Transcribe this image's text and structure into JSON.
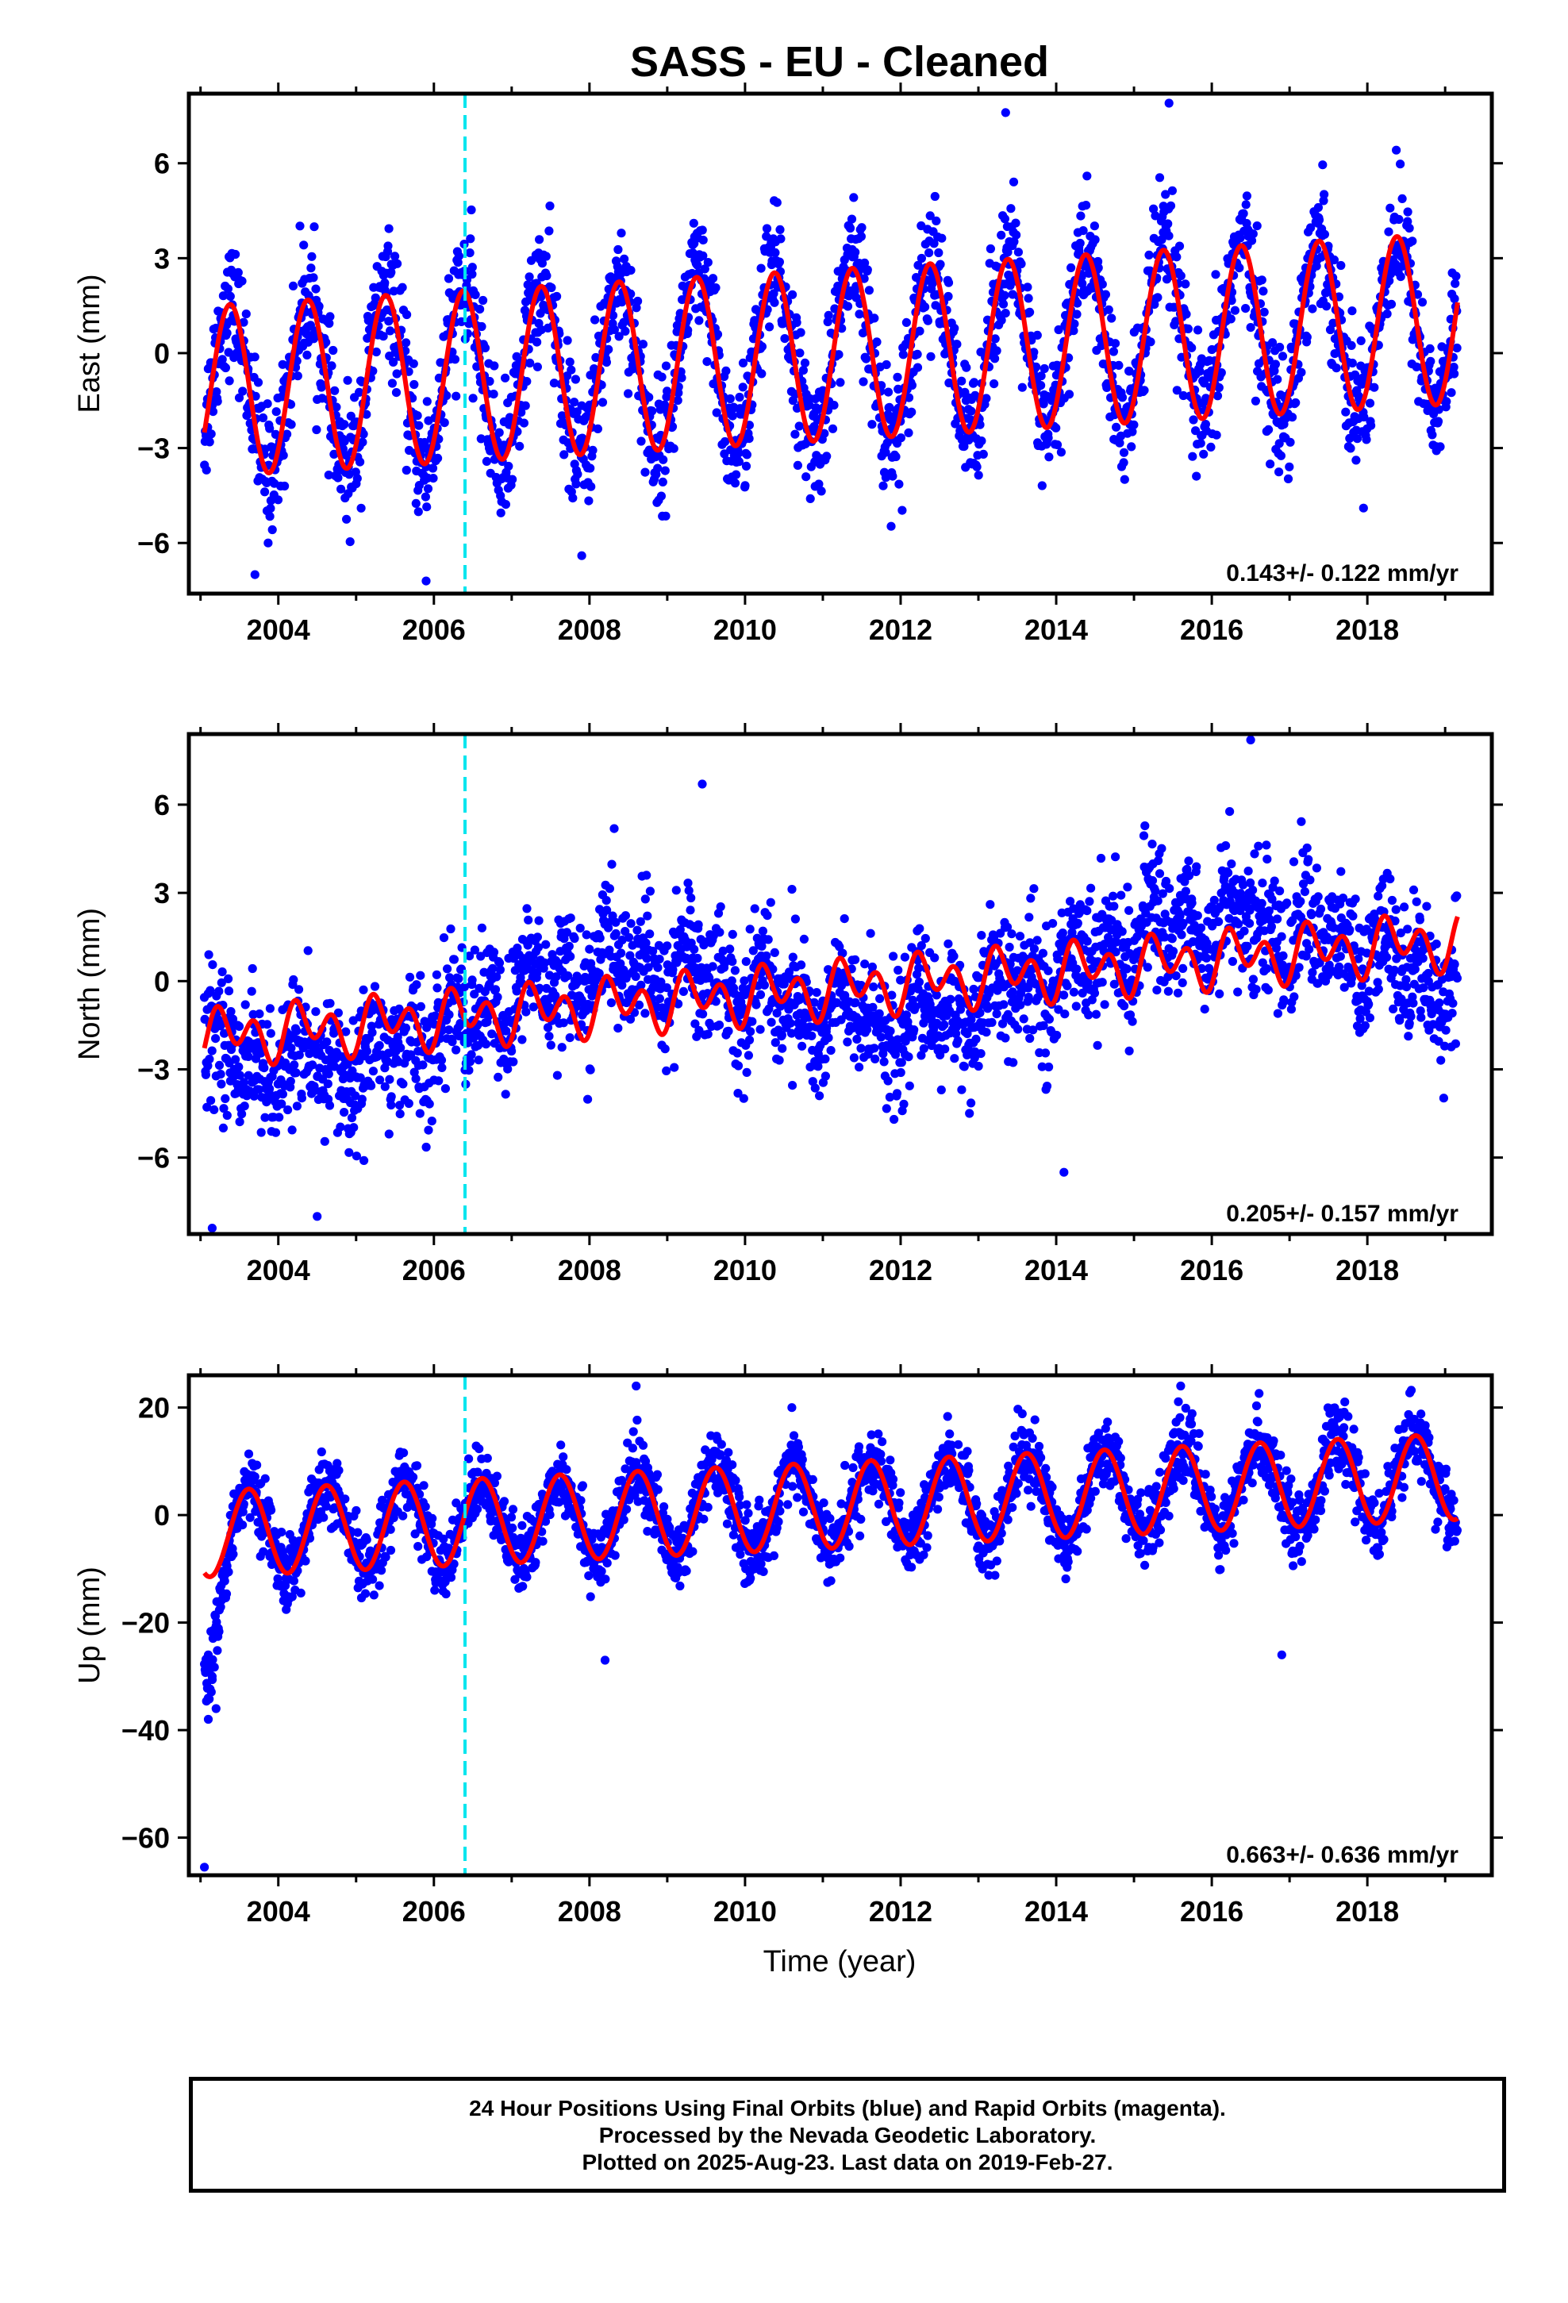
{
  "chart_data": {
    "title": "SASS  - EU - Cleaned",
    "xlabel": "Time (year)",
    "x_ticks": [
      "2004",
      "2006",
      "2008",
      "2010",
      "2012",
      "2014",
      "2016",
      "2018"
    ],
    "xlim": [
      2002.85,
      2019.6
    ],
    "step_epoch": 2006.4,
    "colors": {
      "data": "#0000ff",
      "model": "#ff0000",
      "step": "#00e5ee"
    },
    "panels": [
      {
        "name": "east",
        "type": "scatter",
        "ylabel": "East (mm)",
        "ylim": [
          -7.6,
          8.2
        ],
        "y_ticks": [
          -6,
          -3,
          0,
          3,
          6
        ],
        "y_tick_labels": [
          "−6",
          "−3",
          "0",
          "3",
          "6"
        ],
        "rate_label": "0.143+/- 0.122 mm/yr",
        "model": {
          "t0": 2003.1,
          "offset": -1.2,
          "trend": 0.143,
          "annual_amp": 2.7,
          "annual_peak": 0.38,
          "semi_amp": 0.0,
          "semi_peak": 0.0
        },
        "scatter_sd": 1.0,
        "outliers": [
          [
            2013.35,
            7.6
          ],
          [
            2015.45,
            7.9
          ],
          [
            2003.7,
            -7.0
          ],
          [
            2007.9,
            -6.4
          ],
          [
            2005.9,
            -7.2
          ]
        ]
      },
      {
        "name": "north",
        "type": "scatter",
        "ylabel": "North (mm)",
        "ylim": [
          -8.6,
          8.4
        ],
        "y_ticks": [
          -6,
          -3,
          0,
          3,
          6
        ],
        "y_tick_labels": [
          "−6",
          "−3",
          "0",
          "3",
          "6"
        ],
        "rate_label": "0.205+/- 0.157 mm/yr",
        "model": {
          "t0": 2003.1,
          "offset": -1.9,
          "trend": 0.205,
          "annual_amp": 0.5,
          "annual_peak": 0.35,
          "semi_amp": 0.7,
          "semi_peak": 0.2
        },
        "scatter_sd": 1.1,
        "outliers": [
          [
            2016.5,
            8.2
          ],
          [
            2009.45,
            6.7
          ],
          [
            2003.15,
            -8.4
          ],
          [
            2004.5,
            -8.0
          ],
          [
            2005.1,
            -6.1
          ],
          [
            2014.1,
            -6.5
          ]
        ]
      },
      {
        "name": "up",
        "type": "scatter",
        "ylabel": "Up (mm)",
        "ylim": [
          -67,
          26
        ],
        "y_ticks": [
          -60,
          -40,
          -20,
          0,
          20
        ],
        "y_tick_labels": [
          "−60",
          "−40",
          "−20",
          "0",
          "20"
        ],
        "rate_label": "0.663+/- 0.636 mm/yr",
        "model": {
          "t0": 2003.1,
          "offset": -3.5,
          "trend": 0.663,
          "annual_amp": 8.0,
          "annual_peak": 0.62,
          "semi_amp": 0.0,
          "semi_peak": 0.0
        },
        "scatter_sd": 3.2,
        "outliers": [
          [
            2003.05,
            -65.5
          ],
          [
            2003.1,
            -38
          ],
          [
            2003.2,
            -36
          ],
          [
            2003.15,
            -30
          ],
          [
            2003.1,
            -26
          ],
          [
            2008.2,
            -27
          ],
          [
            2016.9,
            -26
          ],
          [
            2015.6,
            24
          ],
          [
            2008.6,
            24
          ]
        ]
      }
    ]
  },
  "caption": {
    "line1": "24 Hour Positions Using Final Orbits (blue) and Rapid Orbits (magenta).",
    "line2": "Processed by the Nevada Geodetic Laboratory.",
    "line3": "Plotted on 2025-Aug-23. Last data on 2019-Feb-27."
  }
}
